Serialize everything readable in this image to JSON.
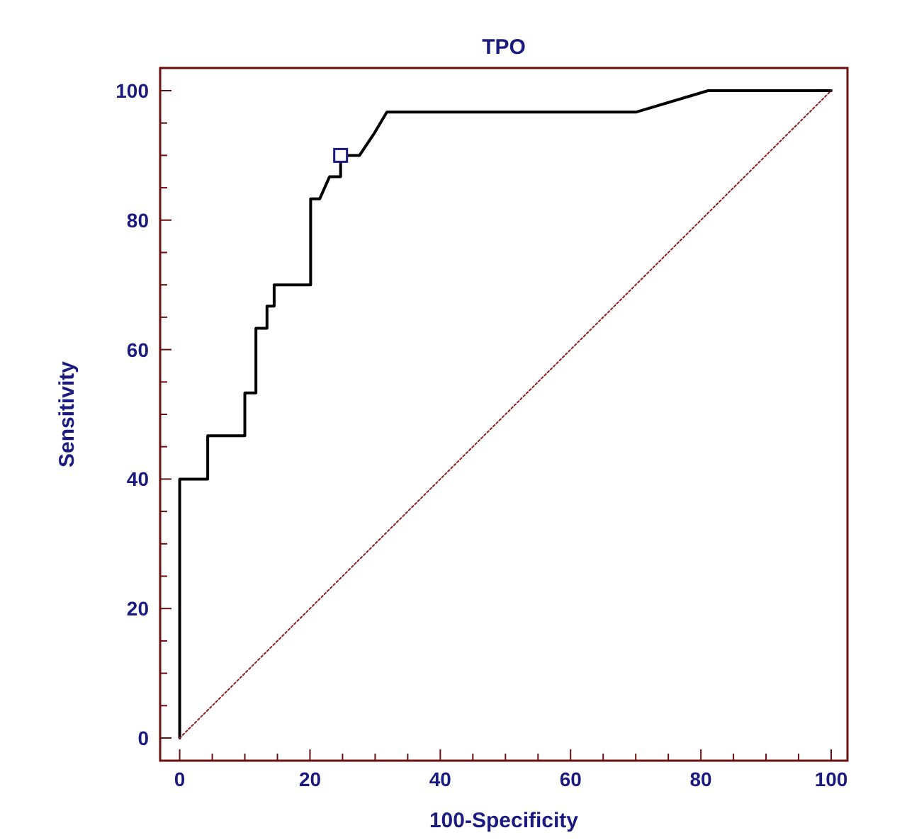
{
  "chart_data": {
    "type": "line",
    "title": "TPO",
    "xlabel": "100-Specificity",
    "ylabel": "Sensitivity",
    "xlim": [
      -3,
      102.5
    ],
    "ylim": [
      -3.5,
      103.5
    ],
    "xticks": [
      0,
      {
        "value": 5,
        "label": null
      },
      {
        "value": 10,
        "label": null
      },
      {
        "value": 15,
        "label": null
      },
      20,
      {
        "value": 25,
        "label": null
      },
      {
        "value": 30,
        "label": null
      },
      {
        "value": 35,
        "label": null
      },
      40,
      {
        "value": 45,
        "label": null
      },
      {
        "value": 50,
        "label": null
      },
      {
        "value": 55,
        "label": null
      },
      60,
      {
        "value": 65,
        "label": null
      },
      {
        "value": 70,
        "label": null
      },
      {
        "value": 75,
        "label": null
      },
      80,
      {
        "value": 85,
        "label": null
      },
      {
        "value": 90,
        "label": null
      },
      {
        "value": 95,
        "label": null
      },
      100
    ],
    "yticks": [
      0,
      {
        "value": 5,
        "label": null
      },
      {
        "value": 10,
        "label": null
      },
      {
        "value": 15,
        "label": null
      },
      20,
      {
        "value": 25,
        "label": null
      },
      {
        "value": 30,
        "label": null
      },
      {
        "value": 35,
        "label": null
      },
      40,
      {
        "value": 45,
        "label": null
      },
      {
        "value": 50,
        "label": null
      },
      {
        "value": 55,
        "label": null
      },
      60,
      {
        "value": 65,
        "label": null
      },
      {
        "value": 70,
        "label": null
      },
      {
        "value": 75,
        "label": null
      },
      80,
      {
        "value": 85,
        "label": null
      },
      {
        "value": 90,
        "label": null
      },
      {
        "value": 95,
        "label": null
      },
      100
    ],
    "grid": false,
    "series": [
      {
        "color": "#000000",
        "line_style": "solid",
        "marker": "none",
        "x": [
          0,
          0,
          4.3,
          4.3,
          10,
          10,
          11.7,
          11.7,
          13.4,
          13.4,
          14.5,
          14.5,
          20.1,
          20.1,
          21.5,
          23,
          24.7,
          24.7,
          27.6,
          29.8,
          31.8,
          70.1,
          81.1,
          100
        ],
        "values": [
          0,
          40,
          40,
          46.7,
          46.7,
          53.3,
          53.3,
          63.3,
          63.3,
          66.7,
          66.7,
          70,
          70,
          83.3,
          83.3,
          86.7,
          86.7,
          90,
          90,
          93.3,
          96.7,
          96.7,
          100,
          100
        ]
      },
      {
        "color": "#8b2020",
        "line_style": "dotted",
        "marker": "none",
        "x": [
          0,
          100
        ],
        "values": [
          0,
          100
        ]
      },
      {
        "type": "scatter",
        "color": "#1a1a80",
        "marker": "square",
        "x": [
          24.7
        ],
        "values": [
          90
        ]
      }
    ]
  }
}
